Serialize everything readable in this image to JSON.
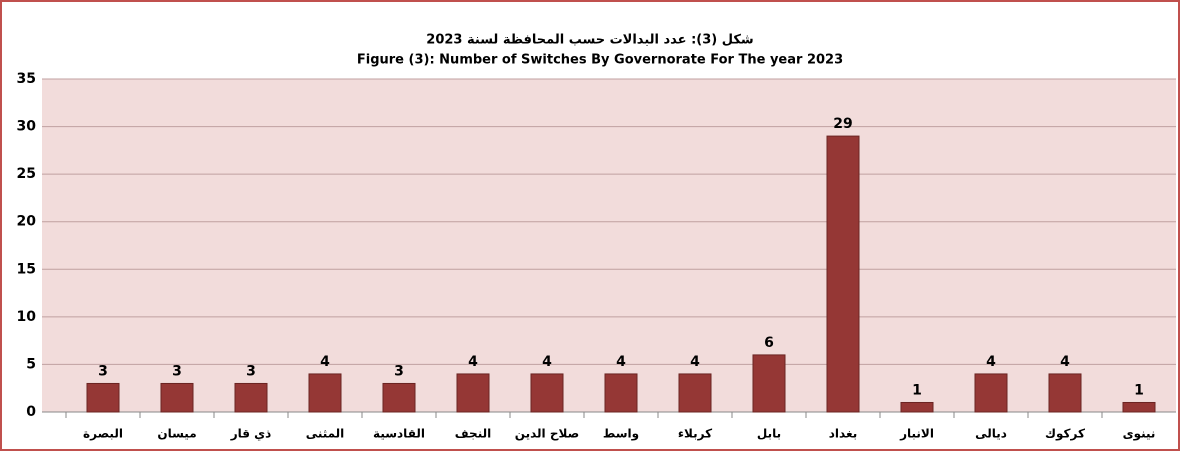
{
  "chart_data": {
    "type": "bar",
    "title": "شكل (3): عدد البدالات حسب المحافظة لسنة 2023",
    "subtitle": "Figure (3): Number of Switches By Governorate For  The year 2023",
    "categories": [
      "البصرة",
      "ميسان",
      "ذي قار",
      "المثنى",
      "القادسية",
      "النجف",
      "صلاح الدين",
      "واسط",
      "كربلاء",
      "بابل",
      "بغداد",
      "الانبار",
      "ديالى",
      "كركوك",
      "نينوى"
    ],
    "values": [
      3,
      3,
      3,
      4,
      3,
      4,
      4,
      4,
      4,
      6,
      29,
      1,
      4,
      4,
      1
    ],
    "color": "#953735",
    "ylim": [
      0,
      35
    ],
    "yticks": [
      0,
      5,
      10,
      15,
      20,
      25,
      30,
      35
    ],
    "grid": true
  }
}
